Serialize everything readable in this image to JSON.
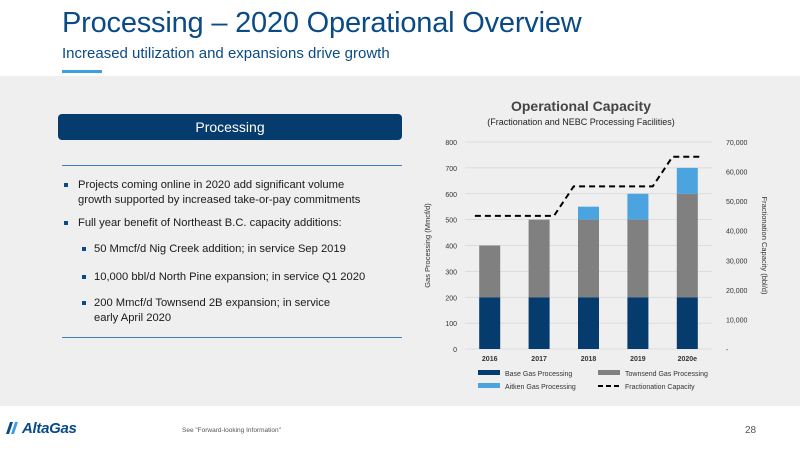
{
  "header": {
    "title": "Processing – 2020 Operational Overview",
    "subtitle": "Increased utilization and expansions drive growth"
  },
  "left_panel": {
    "section_label": "Processing",
    "bullets": [
      {
        "level": 1,
        "lines": [
          "Projects coming online in 2020 add significant volume",
          "growth supported by increased take-or-pay commitments"
        ]
      },
      {
        "level": 1,
        "lines": [
          "Full year benefit of Northeast B.C. capacity additions:"
        ]
      },
      {
        "level": 2,
        "lines": [
          "50 Mmcf/d Nig Creek addition; in service Sep 2019"
        ]
      },
      {
        "level": 2,
        "lines": [
          "10,000 bbl/d North Pine expansion; in service Q1 2020"
        ]
      },
      {
        "level": 2,
        "lines": [
          "200 Mmcf/d Townsend 2B expansion; in service",
          "early April 2020"
        ]
      }
    ]
  },
  "chart_data": {
    "type": "bar",
    "title": "Operational Capacity",
    "subtitle": "(Fractionation and NEBC Processing Facilities)",
    "categories": [
      "2016",
      "2017",
      "2018",
      "2019",
      "2020e"
    ],
    "stacked": true,
    "series": [
      {
        "name": "Base Gas Processing",
        "axis": "left",
        "color": "#063b6d",
        "values": [
          200,
          200,
          200,
          200,
          200
        ]
      },
      {
        "name": "Townsend Gas Processing",
        "axis": "left",
        "color": "#808080",
        "values": [
          200,
          300,
          300,
          300,
          400
        ]
      },
      {
        "name": "Aitken Gas Processing",
        "axis": "left",
        "color": "#4ba3e0",
        "values": [
          0,
          0,
          50,
          100,
          100
        ]
      },
      {
        "name": "Fractionation Capacity",
        "axis": "right",
        "type": "line",
        "style": "dashed",
        "color": "#000000",
        "values": [
          45000,
          45000,
          55000,
          55000,
          65000
        ]
      }
    ],
    "ylabel": "Gas Processing (Mmcf/d)",
    "y2label": "Fractionation Capacity (bbl/d)",
    "ylim": [
      0,
      800
    ],
    "y2lim": [
      0,
      70000
    ],
    "yticks": [
      "0",
      "100",
      "200",
      "300",
      "400",
      "500",
      "600",
      "700",
      "800"
    ],
    "y2ticks": [
      "-",
      "10,000",
      "20,000",
      "30,000",
      "40,000",
      "50,000",
      "60,000",
      "70,000"
    ],
    "legend_position": "bottom",
    "grid": true
  },
  "footer": {
    "logo_text": "AltaGas",
    "note": "See \"Forward-looking Information\"",
    "page_number": "28"
  },
  "colors": {
    "title_blue": "#0a4a86",
    "pill_navy": "#063b6d",
    "panel_bg": "#efefef"
  }
}
